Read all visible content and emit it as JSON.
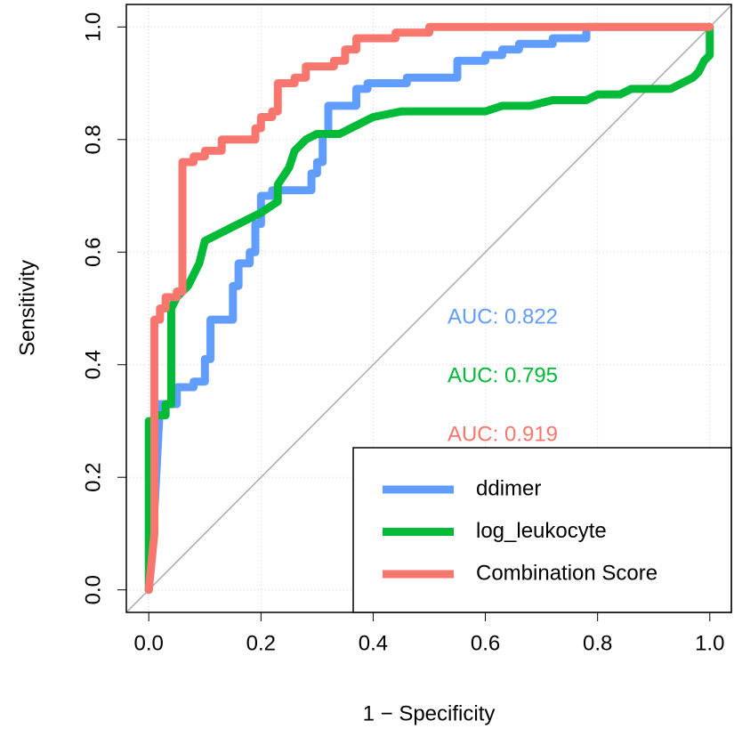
{
  "chart_data": {
    "type": "line",
    "x_label": "1 − Specificity",
    "y_label": "Sensitivity",
    "xlim": [
      -0.04,
      1.04
    ],
    "ylim": [
      -0.04,
      1.04
    ],
    "xticks": [
      {
        "value": 0,
        "label": "0.0"
      },
      0.2,
      0.4,
      0.6,
      0.8,
      {
        "value": 1,
        "label": "1.0"
      }
    ],
    "yticks": [
      {
        "value": 0,
        "label": "0.0"
      },
      0.2,
      0.4,
      0.6,
      0.8,
      {
        "value": 1,
        "label": "1.0"
      }
    ],
    "grid": true,
    "legend": "bottomright",
    "reference_line": true,
    "annotations": [
      {
        "text": "AUC: 0.822",
        "color": "#619CFF"
      },
      {
        "text": "AUC: 0.795",
        "color": "#00BA38"
      },
      {
        "text": "AUC: 0.919",
        "color": "#F8766D"
      }
    ],
    "series": [
      {
        "name": "ddimer",
        "color": "#619CFF",
        "x": [
          0,
          0.01,
          0.02,
          0.05,
          0.05,
          0.08,
          0.08,
          0.1,
          0.1,
          0.11,
          0.11,
          0.15,
          0.15,
          0.16,
          0.16,
          0.18,
          0.18,
          0.19,
          0.19,
          0.2,
          0.2,
          0.22,
          0.22,
          0.29,
          0.29,
          0.3,
          0.3,
          0.31,
          0.31,
          0.32,
          0.32,
          0.37,
          0.37,
          0.39,
          0.39,
          0.46,
          0.46,
          0.55,
          0.55,
          0.6,
          0.6,
          0.63,
          0.63,
          0.66,
          0.66,
          0.72,
          0.72,
          0.78,
          0.78,
          1
        ],
        "values": [
          0,
          0.14,
          0.33,
          0.33,
          0.36,
          0.36,
          0.37,
          0.37,
          0.41,
          0.41,
          0.48,
          0.48,
          0.54,
          0.54,
          0.58,
          0.58,
          0.6,
          0.6,
          0.65,
          0.65,
          0.7,
          0.7,
          0.71,
          0.71,
          0.74,
          0.74,
          0.76,
          0.76,
          0.81,
          0.81,
          0.86,
          0.86,
          0.89,
          0.89,
          0.9,
          0.9,
          0.91,
          0.91,
          0.94,
          0.94,
          0.95,
          0.95,
          0.96,
          0.96,
          0.97,
          0.97,
          0.98,
          0.98,
          1,
          1
        ]
      },
      {
        "name": "log_leukocyte",
        "color": "#00BA38",
        "x": [
          0,
          0,
          0.01,
          0.01,
          0.03,
          0.03,
          0.04,
          0.04,
          0.05,
          0.07,
          0.08,
          0.09,
          0.1,
          0.2,
          0.23,
          0.23,
          0.25,
          0.26,
          0.28,
          0.3,
          0.34,
          0.38,
          0.4,
          0.45,
          0.6,
          0.63,
          0.68,
          0.72,
          0.78,
          0.8,
          0.84,
          0.86,
          0.93,
          0.95,
          0.97,
          0.98,
          0.99,
          1,
          1,
          1
        ],
        "values": [
          0,
          0.3,
          0.3,
          0.31,
          0.31,
          0.33,
          0.33,
          0.5,
          0.52,
          0.54,
          0.56,
          0.58,
          0.62,
          0.67,
          0.69,
          0.72,
          0.75,
          0.78,
          0.8,
          0.81,
          0.81,
          0.83,
          0.84,
          0.85,
          0.85,
          0.86,
          0.86,
          0.87,
          0.87,
          0.88,
          0.88,
          0.89,
          0.89,
          0.9,
          0.91,
          0.92,
          0.94,
          0.95,
          0.97,
          1
        ]
      },
      {
        "name": "Combination Score",
        "color": "#F8766D",
        "x": [
          0,
          0.01,
          0.01,
          0.02,
          0.02,
          0.03,
          0.03,
          0.05,
          0.05,
          0.06,
          0.06,
          0.08,
          0.08,
          0.1,
          0.1,
          0.13,
          0.13,
          0.19,
          0.19,
          0.2,
          0.2,
          0.22,
          0.22,
          0.23,
          0.23,
          0.26,
          0.26,
          0.28,
          0.28,
          0.33,
          0.33,
          0.35,
          0.35,
          0.37,
          0.37,
          0.44,
          0.44,
          0.5,
          0.5,
          1
        ],
        "values": [
          0,
          0.1,
          0.48,
          0.48,
          0.5,
          0.5,
          0.52,
          0.52,
          0.53,
          0.53,
          0.76,
          0.76,
          0.77,
          0.77,
          0.78,
          0.78,
          0.8,
          0.8,
          0.82,
          0.82,
          0.84,
          0.84,
          0.85,
          0.85,
          0.9,
          0.9,
          0.91,
          0.91,
          0.93,
          0.93,
          0.94,
          0.94,
          0.96,
          0.96,
          0.98,
          0.98,
          0.99,
          0.99,
          1,
          1
        ]
      }
    ]
  }
}
